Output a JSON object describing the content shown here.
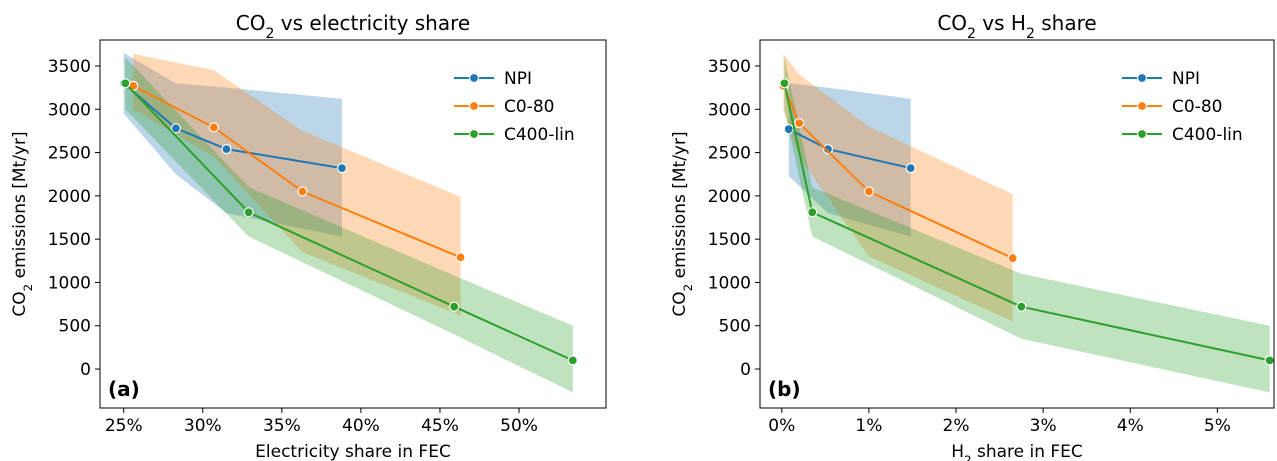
{
  "chart_data": [
    {
      "type": "line",
      "title": "CO₂ vs electricity share",
      "xlabel": "Electricity share in FEC",
      "ylabel": "CO₂ emissions [Mt/yr]",
      "panel_label": "(a)",
      "x_unit": "fraction",
      "xlim": [
        0.235,
        0.555
      ],
      "ylim": [
        -450,
        3800
      ],
      "xticks": [
        0.25,
        0.3,
        0.35,
        0.4,
        0.45,
        0.5
      ],
      "xtick_labels": [
        "25%",
        "30%",
        "35%",
        "40%",
        "45%",
        "50%"
      ],
      "yticks": [
        0,
        500,
        1000,
        1500,
        2000,
        2500,
        3000,
        3500
      ],
      "ytick_labels": [
        "0",
        "500",
        "1000",
        "1500",
        "2000",
        "2500",
        "3000",
        "3500"
      ],
      "grid": false,
      "legend_position": "top-right",
      "series": [
        {
          "name": "NPI",
          "color": "#1f77b4",
          "x": [
            0.25,
            0.283,
            0.315,
            0.388
          ],
          "y": [
            3300,
            2780,
            2540,
            2320
          ],
          "band_x": [
            0.25,
            0.283,
            0.315,
            0.388
          ],
          "band_low": [
            2950,
            2250,
            1800,
            1530
          ],
          "band_high": [
            3650,
            3300,
            3250,
            3120
          ]
        },
        {
          "name": "C0-80",
          "color": "#ff7f0e",
          "x": [
            0.256,
            0.307,
            0.363,
            0.463
          ],
          "y": [
            3270,
            2790,
            2050,
            1290
          ],
          "band_x": [
            0.256,
            0.307,
            0.363,
            0.463
          ],
          "band_low": [
            3000,
            2450,
            1350,
            620
          ],
          "band_high": [
            3640,
            3450,
            2750,
            1990
          ]
        },
        {
          "name": "C400-lin",
          "color": "#2ca02c",
          "x": [
            0.251,
            0.329,
            0.459,
            0.534
          ],
          "y": [
            3300,
            1810,
            720,
            100
          ],
          "band_x": [
            0.251,
            0.329,
            0.459,
            0.534
          ],
          "band_low": [
            3000,
            1530,
            400,
            -270
          ],
          "band_high": [
            3600,
            2100,
            1080,
            500
          ]
        }
      ]
    },
    {
      "type": "line",
      "title": "CO₂ vs H₂ share",
      "xlabel": "H₂ share in FEC",
      "ylabel": "CO₂ emissions [Mt/yr]",
      "panel_label": "(b)",
      "x_unit": "fraction",
      "xlim": [
        -0.0025,
        0.0565
      ],
      "ylim": [
        -450,
        3800
      ],
      "xticks": [
        0.0,
        0.01,
        0.02,
        0.03,
        0.04,
        0.05
      ],
      "xtick_labels": [
        "0%",
        "1%",
        "2%",
        "3%",
        "4%",
        "5%"
      ],
      "yticks": [
        0,
        500,
        1000,
        1500,
        2000,
        2500,
        3000,
        3500
      ],
      "ytick_labels": [
        "0",
        "500",
        "1000",
        "1500",
        "2000",
        "2500",
        "3000",
        "3500"
      ],
      "grid": false,
      "legend_position": "top-right",
      "series": [
        {
          "name": "NPI",
          "color": "#1f77b4",
          "x": [
            0.0008,
            0.0053,
            0.0148
          ],
          "y": [
            2770,
            2540,
            2320
          ],
          "band_x": [
            0.0008,
            0.0053,
            0.0148
          ],
          "band_low": [
            2230,
            1800,
            1530
          ],
          "band_high": [
            3300,
            3250,
            3120
          ]
        },
        {
          "name": "C0-80",
          "color": "#ff7f0e",
          "x": [
            0.0002,
            0.002,
            0.01,
            0.0265
          ],
          "y": [
            3270,
            2840,
            2050,
            1280
          ],
          "band_x": [
            0.0002,
            0.002,
            0.01,
            0.0265
          ],
          "band_low": [
            2980,
            2450,
            1300,
            550
          ],
          "band_high": [
            3640,
            3400,
            2800,
            2020
          ]
        },
        {
          "name": "C400-lin",
          "color": "#2ca02c",
          "x": [
            0.0003,
            0.0035,
            0.0275,
            0.056
          ],
          "y": [
            3300,
            1810,
            720,
            100
          ],
          "band_x": [
            0.0003,
            0.0035,
            0.0275,
            0.056
          ],
          "band_low": [
            3000,
            1530,
            350,
            -270
          ],
          "band_high": [
            3600,
            2100,
            1100,
            500
          ]
        }
      ]
    }
  ]
}
